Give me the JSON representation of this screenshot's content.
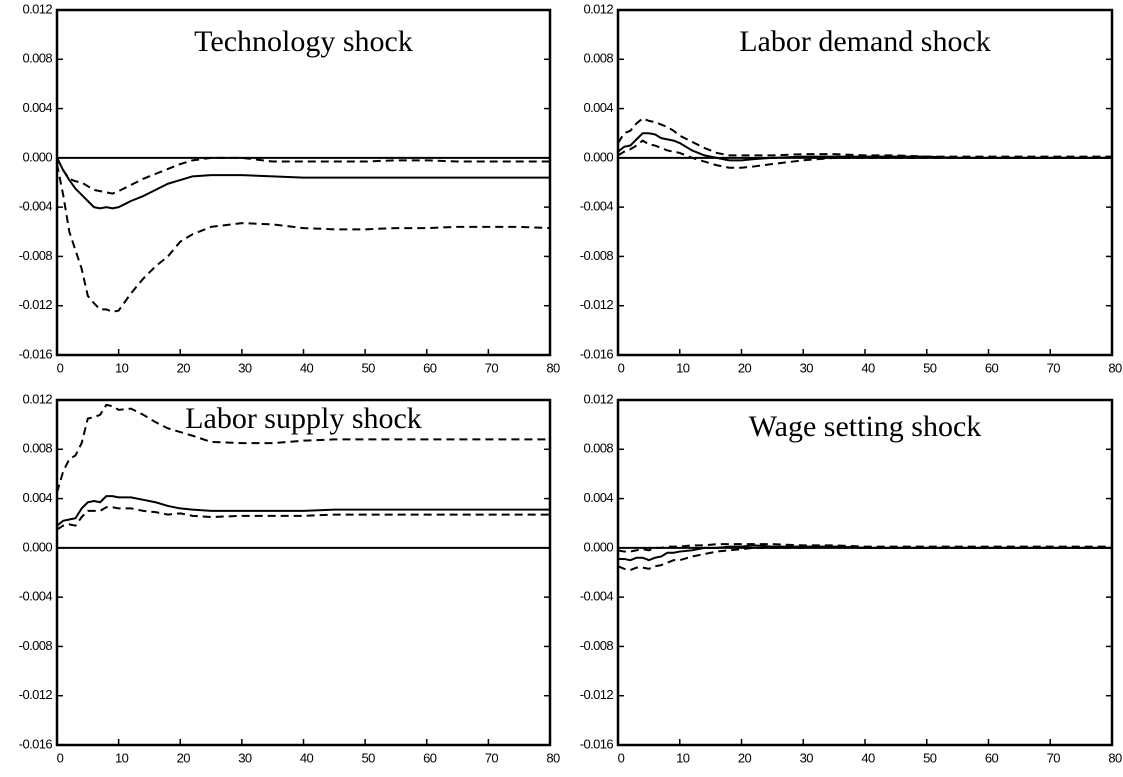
{
  "chart_data": [
    {
      "type": "line",
      "title": "Technology shock",
      "x": [
        0,
        1,
        2,
        3,
        4,
        5,
        6,
        7,
        8,
        9,
        10,
        12,
        14,
        16,
        18,
        20,
        22,
        25,
        30,
        35,
        40,
        45,
        50,
        55,
        60,
        65,
        70,
        75,
        80
      ],
      "xlim": [
        0,
        80
      ],
      "xticks": [
        0,
        10,
        20,
        30,
        40,
        50,
        60,
        70,
        80
      ],
      "ylim": [
        -0.016,
        0.012
      ],
      "yticks": [
        -0.016,
        -0.012,
        -0.008,
        -0.004,
        {
          "value": 0,
          "label": "0.000"
        },
        0.004,
        0.008,
        0.012
      ],
      "hline": 0,
      "series": [
        {
          "color": "#000",
          "dashed": false,
          "values": [
            0,
            -0.001,
            -0.0018,
            -0.0025,
            -0.003,
            -0.0035,
            -0.004,
            -0.0041,
            -0.004,
            -0.0041,
            -0.004,
            -0.0035,
            -0.0031,
            -0.0026,
            -0.0021,
            -0.0018,
            -0.0015,
            -0.0014,
            -0.0014,
            -0.0015,
            -0.0016,
            -0.0016,
            -0.0016,
            -0.0016,
            -0.0016,
            -0.0016,
            -0.0016,
            -0.0016,
            -0.0016
          ]
        },
        {
          "color": "#000",
          "dashed": true,
          "values": [
            0,
            -0.001,
            -0.0017,
            -0.0019,
            -0.002,
            -0.0023,
            -0.0026,
            -0.0027,
            -0.0028,
            -0.0029,
            -0.0027,
            -0.0022,
            -0.0017,
            -0.0013,
            -0.0009,
            -0.0005,
            -0.0002,
            0,
            0,
            -0.0003,
            -0.0003,
            -0.0003,
            -0.0003,
            -0.0002,
            -0.0002,
            -0.0003,
            -0.0003,
            -0.0003,
            -0.0003
          ]
        },
        {
          "color": "#000",
          "dashed": true,
          "values": [
            -0.0005,
            -0.003,
            -0.006,
            -0.0075,
            -0.009,
            -0.0112,
            -0.0118,
            -0.0123,
            -0.0123,
            -0.0125,
            -0.0124,
            -0.011,
            -0.0098,
            -0.0088,
            -0.008,
            -0.0068,
            -0.0062,
            -0.0056,
            -0.0053,
            -0.0054,
            -0.0057,
            -0.0058,
            -0.0058,
            -0.0057,
            -0.0057,
            -0.0056,
            -0.0056,
            -0.0056,
            -0.0057
          ]
        }
      ]
    },
    {
      "type": "line",
      "title": "Labor demand shock",
      "x": [
        0,
        1,
        2,
        3,
        4,
        5,
        6,
        7,
        8,
        9,
        10,
        12,
        14,
        16,
        18,
        20,
        22,
        25,
        30,
        35,
        40,
        45,
        50,
        55,
        60,
        65,
        70,
        75,
        80
      ],
      "xlim": [
        0,
        80
      ],
      "xticks": [
        0,
        10,
        20,
        30,
        40,
        50,
        60,
        70,
        80
      ],
      "ylim": [
        -0.016,
        0.012
      ],
      "yticks": [
        -0.016,
        -0.012,
        -0.008,
        -0.004,
        {
          "value": 0,
          "label": "0.000"
        },
        0.004,
        0.008,
        0.012
      ],
      "hline": 0,
      "series": [
        {
          "color": "#000",
          "dashed": false,
          "values": [
            0.0005,
            0.0009,
            0.001,
            0.0015,
            0.002,
            0.002,
            0.0019,
            0.0016,
            0.0015,
            0.0014,
            0.0012,
            0.0006,
            0.0002,
            0,
            -0.0002,
            -0.0002,
            -0.0001,
            0,
            0.0001,
            0.0001,
            0.0001,
            0.0001,
            0.0001,
            0,
            0,
            0,
            0,
            0,
            0
          ]
        },
        {
          "color": "#000",
          "dashed": true,
          "values": [
            0.0012,
            0.002,
            0.0022,
            0.0028,
            0.0032,
            0.003,
            0.0029,
            0.0027,
            0.0025,
            0.0022,
            0.0018,
            0.0013,
            0.0008,
            0.0004,
            0.0002,
            0.0002,
            0.0002,
            0.0002,
            0.0003,
            0.0003,
            0.0002,
            0.0002,
            0.0001,
            0.0001,
            0.0001,
            0.0001,
            0.0001,
            0.0001,
            0.0001
          ]
        },
        {
          "color": "#000",
          "dashed": true,
          "values": [
            0.0002,
            0.0005,
            0.0007,
            0.001,
            0.0014,
            0.0011,
            0.001,
            0.0008,
            0.0006,
            0.0005,
            0.0004,
            0,
            -0.0003,
            -0.0006,
            -0.0008,
            -0.0008,
            -0.0007,
            -0.0005,
            -0.0002,
            0,
            0,
            0,
            0,
            0,
            0,
            0,
            0,
            0,
            0
          ]
        }
      ]
    },
    {
      "type": "line",
      "title": "Labor supply shock",
      "x": [
        0,
        1,
        2,
        3,
        4,
        5,
        6,
        7,
        8,
        9,
        10,
        12,
        14,
        16,
        18,
        20,
        22,
        25,
        30,
        35,
        40,
        45,
        50,
        55,
        60,
        65,
        70,
        75,
        80
      ],
      "xlim": [
        0,
        80
      ],
      "xticks": [
        0,
        10,
        20,
        30,
        40,
        50,
        60,
        70,
        80
      ],
      "ylim": [
        -0.016,
        0.012
      ],
      "yticks": [
        -0.016,
        -0.012,
        -0.008,
        -0.004,
        {
          "value": 0,
          "label": "0.000"
        },
        0.004,
        0.008,
        0.012
      ],
      "hline": 0,
      "series": [
        {
          "color": "#000",
          "dashed": false,
          "values": [
            0.0018,
            0.0022,
            0.0023,
            0.0024,
            0.0032,
            0.0037,
            0.0038,
            0.0037,
            0.0042,
            0.0042,
            0.0041,
            0.0041,
            0.0039,
            0.0037,
            0.0034,
            0.0032,
            0.0031,
            0.003,
            0.003,
            0.003,
            0.003,
            0.0031,
            0.0031,
            0.0031,
            0.0031,
            0.0031,
            0.0031,
            0.0031,
            0.0031
          ]
        },
        {
          "color": "#000",
          "dashed": true,
          "values": [
            0.0045,
            0.0062,
            0.0072,
            0.0075,
            0.0085,
            0.0105,
            0.0106,
            0.0108,
            0.0116,
            0.0115,
            0.0112,
            0.0113,
            0.0108,
            0.0102,
            0.0097,
            0.0094,
            0.0091,
            0.0086,
            0.0085,
            0.0085,
            0.0087,
            0.0088,
            0.0088,
            0.0088,
            0.0088,
            0.0088,
            0.0088,
            0.0088,
            0.0088
          ]
        },
        {
          "color": "#000",
          "dashed": true,
          "values": [
            0.0015,
            0.0018,
            0.0019,
            0.0018,
            0.0025,
            0.003,
            0.003,
            0.003,
            0.0033,
            0.0033,
            0.0032,
            0.0032,
            0.003,
            0.0029,
            0.0027,
            0.0028,
            0.0026,
            0.0025,
            0.0026,
            0.0026,
            0.0026,
            0.0027,
            0.0027,
            0.0027,
            0.0027,
            0.0027,
            0.0027,
            0.0027,
            0.0027
          ]
        }
      ]
    },
    {
      "type": "line",
      "title": "Wage setting shock",
      "x": [
        0,
        1,
        2,
        3,
        4,
        5,
        6,
        7,
        8,
        9,
        10,
        12,
        14,
        16,
        18,
        20,
        22,
        25,
        30,
        35,
        40,
        45,
        50,
        55,
        60,
        65,
        70,
        75,
        80
      ],
      "xlim": [
        0,
        80
      ],
      "xticks": [
        0,
        10,
        20,
        30,
        40,
        50,
        60,
        70,
        80
      ],
      "ylim": [
        -0.016,
        0.012
      ],
      "yticks": [
        -0.016,
        -0.012,
        -0.008,
        -0.004,
        {
          "value": 0,
          "label": "0.000"
        },
        0.004,
        0.008,
        0.012
      ],
      "hline": 0,
      "series": [
        {
          "color": "#000",
          "dashed": false,
          "values": [
            -0.0009,
            -0.0009,
            -0.001,
            -0.0008,
            -0.0008,
            -0.001,
            -0.0008,
            -0.0007,
            -0.0004,
            -0.0004,
            -0.0003,
            -0.0002,
            0,
            0,
            0.0001,
            0.0001,
            0.0002,
            0.0001,
            0.0001,
            0.0001,
            0,
            0,
            0,
            0,
            0,
            0,
            0,
            0,
            0
          ]
        },
        {
          "color": "#000",
          "dashed": true,
          "values": [
            -0.0002,
            -0.0003,
            -0.0003,
            -0.0002,
            -0.0001,
            -0.0002,
            0,
            0,
            0.0001,
            0.0001,
            0.0001,
            0.0002,
            0.0002,
            0.0003,
            0.0003,
            0.0003,
            0.0003,
            0.0003,
            0.0002,
            0.0002,
            0.0001,
            0.0001,
            0.0001,
            0.0001,
            0.0001,
            0.0001,
            0.0001,
            0.0001,
            0.0001
          ]
        },
        {
          "color": "#000",
          "dashed": true,
          "values": [
            -0.0015,
            -0.0017,
            -0.0018,
            -0.0016,
            -0.0016,
            -0.0017,
            -0.0015,
            -0.0014,
            -0.0012,
            -0.001,
            -0.001,
            -0.0007,
            -0.0005,
            -0.0003,
            -0.0002,
            -0.0001,
            0,
            0,
            0,
            0.0001,
            0,
            0,
            0,
            0,
            0,
            0,
            0,
            0,
            0
          ]
        }
      ]
    }
  ]
}
